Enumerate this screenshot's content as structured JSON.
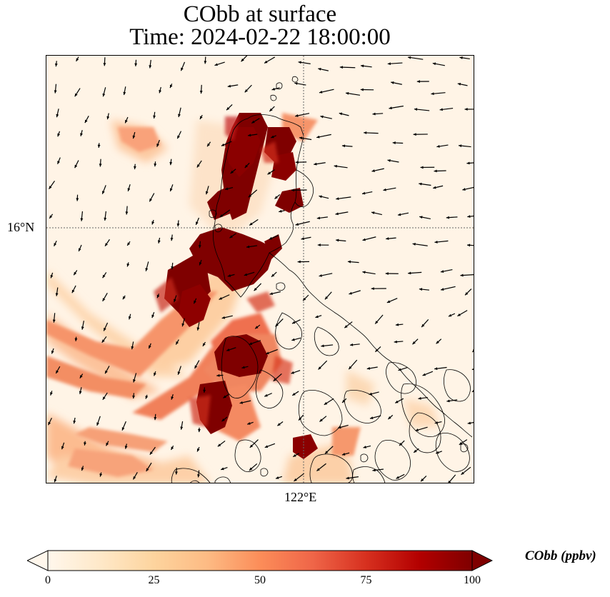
{
  "title": {
    "line1": "CObb at surface",
    "line2": "Time: 2024-02-22 18:00:00"
  },
  "map": {
    "variable": "CObb",
    "colormap": "OrRd",
    "gridlines": {
      "latitude": "16°N",
      "longitude": "122°E",
      "style": "dotted"
    },
    "coastlines": true,
    "wind_vectors": true
  },
  "colorbar": {
    "label": "CObb (ppbv)",
    "ticks": [
      "0",
      "25",
      "50",
      "75",
      "100"
    ],
    "min": 0,
    "max": 100,
    "extend": "both",
    "colors": [
      "#fff7ec",
      "#fee8c8",
      "#fdd49e",
      "#fdbb84",
      "#fc8d59",
      "#ef6548",
      "#d7301f",
      "#b30000",
      "#7f0000"
    ]
  }
}
